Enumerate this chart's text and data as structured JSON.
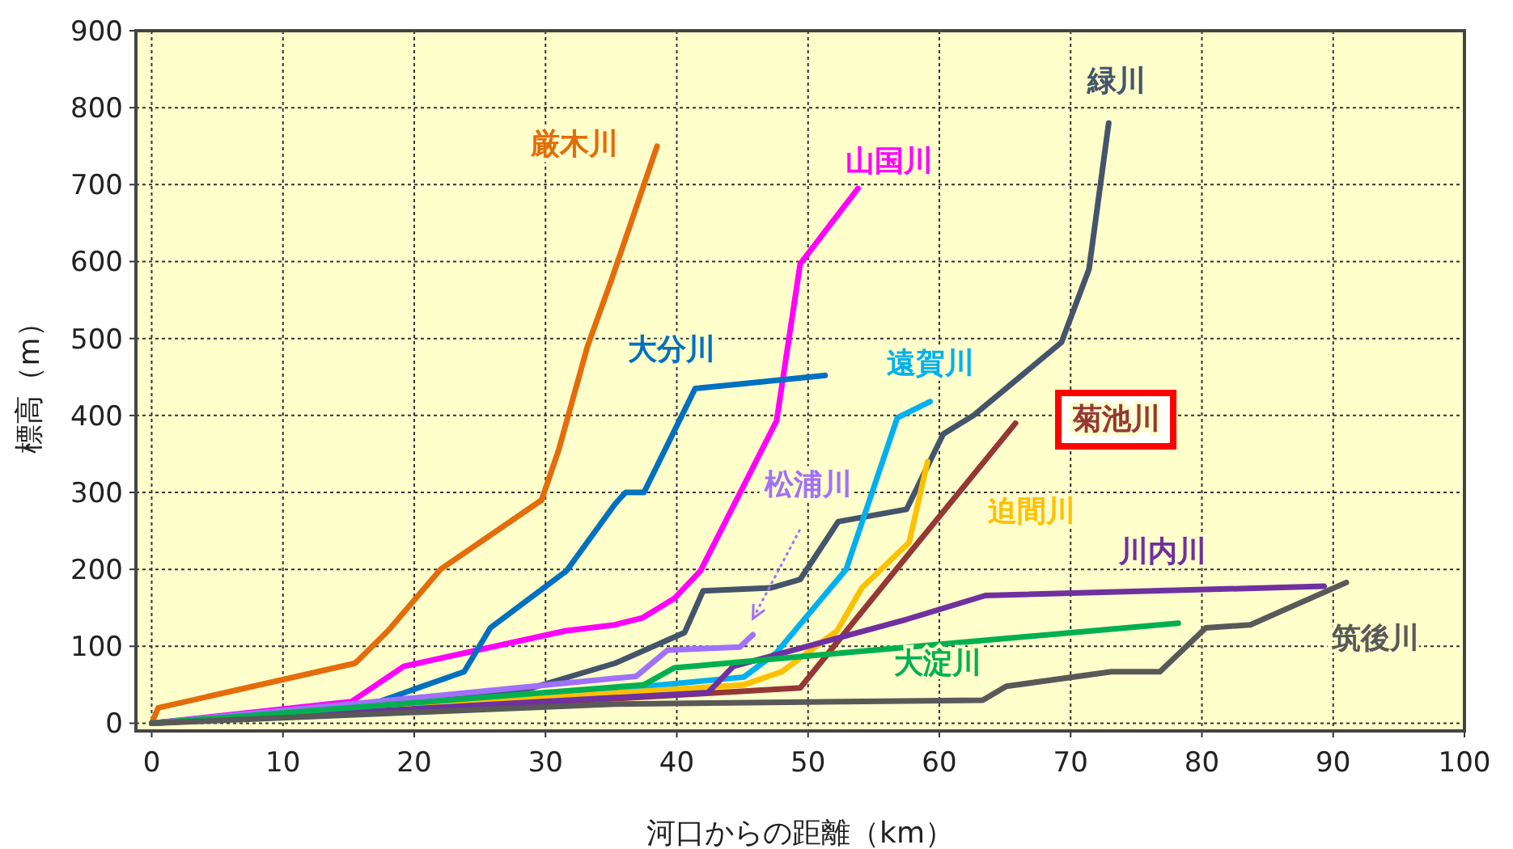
{
  "chart_data": {
    "type": "line",
    "xlabel": "河口からの距離（km）",
    "ylabel": "標高（m）",
    "xlim": [
      -1.2,
      100
    ],
    "ylim": [
      -10,
      900
    ],
    "xticks": [
      0,
      10,
      20,
      30,
      40,
      50,
      60,
      70,
      80,
      90,
      100
    ],
    "yticks": [
      0,
      100,
      200,
      300,
      400,
      500,
      600,
      700,
      800,
      900
    ],
    "grid": true,
    "series": [
      {
        "name": "厳木川",
        "color": "#e46c0a",
        "x": [
          0,
          0.5,
          15.5,
          18,
          22,
          29.7,
          31,
          33.2,
          35,
          38.5
        ],
        "values": [
          0,
          20,
          78,
          120,
          200,
          290,
          355,
          490,
          575,
          750
        ]
      },
      {
        "name": "山国川",
        "color": "#ff00ff",
        "x": [
          0,
          15.2,
          19.2,
          31.5,
          35.3,
          37.4,
          39.8,
          41.8,
          47.6,
          49.4,
          53.8
        ],
        "values": [
          0,
          28,
          74,
          120,
          128,
          137,
          162,
          198,
          393,
          597,
          695
        ]
      },
      {
        "name": "緑川",
        "color": "#44546a",
        "x": [
          0,
          28.2,
          35.3,
          40.6,
          42,
          47.2,
          49.4,
          52.3,
          57.5,
          59.3,
          60.3,
          62.6,
          69.3,
          71.4,
          72.9
        ],
        "values": [
          0,
          42,
          78,
          118,
          172,
          176,
          187,
          262,
          278,
          341,
          376,
          400,
          495,
          590,
          780
        ]
      },
      {
        "name": "大分川",
        "color": "#0070c0",
        "x": [
          0,
          16.8,
          23.8,
          25.8,
          31.6,
          35.3,
          36.1,
          37.5,
          41.4,
          51.3
        ],
        "values": [
          0,
          25,
          67,
          124,
          198,
          285,
          300,
          300,
          435,
          452
        ]
      },
      {
        "name": "遠賀川",
        "color": "#00b0f0",
        "x": [
          0,
          37.7,
          45.1,
          47.6,
          52.9,
          56.8,
          59.3
        ],
        "values": [
          0,
          48,
          60,
          92,
          200,
          397,
          418
        ]
      },
      {
        "name": "菊池川",
        "color": "#953735",
        "x": [
          0,
          35.3,
          49.4,
          57.1,
          65.8
        ],
        "values": [
          0,
          32,
          46,
          208,
          390
        ]
      },
      {
        "name": "松浦川",
        "color": "#a070ff",
        "x": [
          0,
          36.9,
          39.3,
          44.8,
          45.8
        ],
        "values": [
          0,
          61,
          95,
          99,
          115
        ]
      },
      {
        "name": "迫間川",
        "color": "#ffc000",
        "x": [
          0,
          45.1,
          48,
          52.2,
          54.1,
          57.7,
          59.1
        ],
        "values": [
          0,
          50,
          67,
          120,
          176,
          235,
          340
        ]
      },
      {
        "name": "川内川",
        "color": "#7030a0",
        "x": [
          0,
          42.4,
          44.3,
          57.5,
          63.5,
          89.3
        ],
        "values": [
          0,
          40,
          74,
          135,
          166,
          178
        ]
      },
      {
        "name": "大淀川",
        "color": "#00b050",
        "x": [
          0,
          37.5,
          39.8,
          78.2
        ],
        "values": [
          0,
          50,
          72,
          130
        ]
      },
      {
        "name": "筑後川",
        "color": "#595959",
        "x": [
          0,
          35.3,
          63.3,
          65.1,
          73.1,
          76.8,
          80.3,
          83.7,
          91
        ],
        "values": [
          0,
          25,
          30,
          48,
          67,
          67,
          124,
          128,
          183
        ]
      }
    ]
  }
}
